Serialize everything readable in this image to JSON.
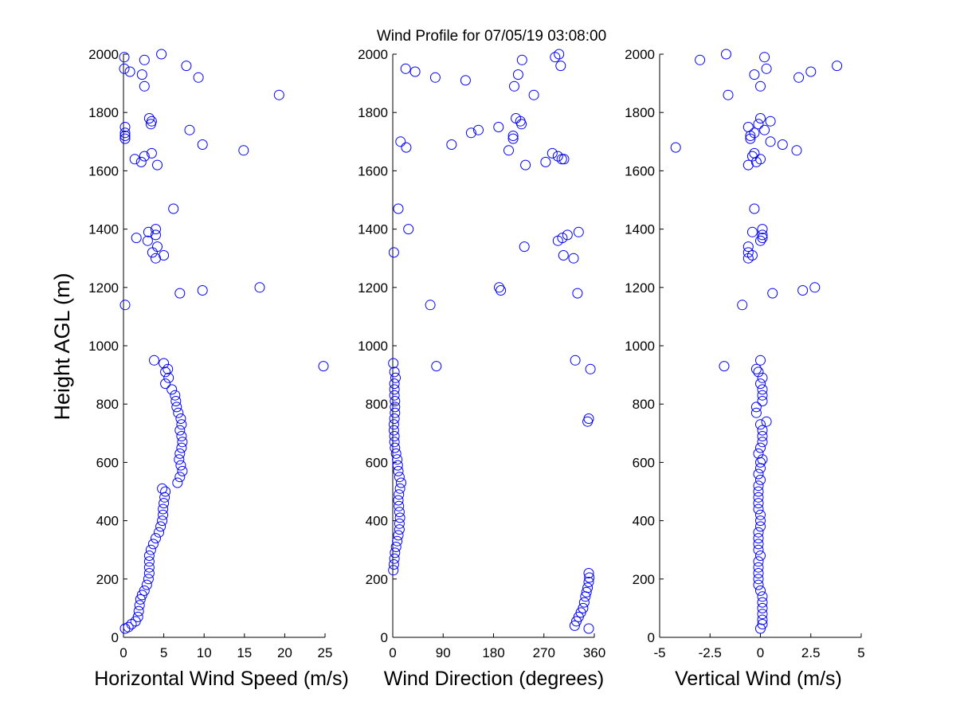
{
  "figure": {
    "title": "Wind Profile for  07/05/19 03:08:00",
    "ylabel": "Height AGL (m)"
  },
  "chart_data": [
    {
      "type": "scatter",
      "id": "speed",
      "xlabel": "Horizontal Wind Speed (m/s)",
      "ylabel": "Height AGL (m)",
      "xlim": [
        0,
        25
      ],
      "ylim": [
        0,
        2000
      ],
      "xticks": [
        "0",
        "5",
        "10",
        "15",
        "20",
        "25"
      ],
      "yticks": [
        "0",
        "200",
        "400",
        "600",
        "800",
        "1000",
        "1200",
        "1400",
        "1600",
        "1800",
        "2000"
      ],
      "marker": "circle",
      "color": "#0000ff",
      "points": [
        [
          0.2,
          30
        ],
        [
          0.6,
          35
        ],
        [
          1.0,
          45
        ],
        [
          1.5,
          55
        ],
        [
          1.8,
          70
        ],
        [
          1.9,
          90
        ],
        [
          2.0,
          110
        ],
        [
          2.1,
          130
        ],
        [
          2.3,
          145
        ],
        [
          2.6,
          160
        ],
        [
          2.9,
          180
        ],
        [
          3.1,
          200
        ],
        [
          3.2,
          220
        ],
        [
          3.2,
          240
        ],
        [
          3.2,
          260
        ],
        [
          3.2,
          280
        ],
        [
          3.4,
          300
        ],
        [
          3.7,
          320
        ],
        [
          4.0,
          340
        ],
        [
          4.4,
          360
        ],
        [
          4.6,
          380
        ],
        [
          4.8,
          400
        ],
        [
          4.9,
          420
        ],
        [
          4.9,
          440
        ],
        [
          5.0,
          460
        ],
        [
          5.1,
          480
        ],
        [
          5.2,
          500
        ],
        [
          4.8,
          510
        ],
        [
          6.7,
          530
        ],
        [
          7.0,
          550
        ],
        [
          7.3,
          570
        ],
        [
          7.1,
          590
        ],
        [
          6.9,
          610
        ],
        [
          7.0,
          630
        ],
        [
          7.2,
          650
        ],
        [
          7.3,
          670
        ],
        [
          7.2,
          690
        ],
        [
          7.0,
          710
        ],
        [
          7.2,
          730
        ],
        [
          7.1,
          750
        ],
        [
          6.8,
          770
        ],
        [
          6.6,
          790
        ],
        [
          6.5,
          810
        ],
        [
          6.4,
          830
        ],
        [
          6.0,
          850
        ],
        [
          5.2,
          870
        ],
        [
          5.6,
          890
        ],
        [
          5.2,
          910
        ],
        [
          5.5,
          920
        ],
        [
          5.0,
          940
        ],
        [
          3.8,
          950
        ],
        [
          24.8,
          930
        ],
        [
          0.2,
          1140
        ],
        [
          7.0,
          1180
        ],
        [
          9.8,
          1190
        ],
        [
          16.9,
          1200
        ],
        [
          5.0,
          1310
        ],
        [
          3.6,
          1320
        ],
        [
          4.0,
          1300
        ],
        [
          4.2,
          1340
        ],
        [
          3.0,
          1360
        ],
        [
          1.6,
          1370
        ],
        [
          3.1,
          1390
        ],
        [
          4.0,
          1400
        ],
        [
          4.0,
          1380
        ],
        [
          6.2,
          1470
        ],
        [
          4.2,
          1620
        ],
        [
          2.2,
          1630
        ],
        [
          2.6,
          1650
        ],
        [
          1.4,
          1640
        ],
        [
          3.5,
          1660
        ],
        [
          9.8,
          1690
        ],
        [
          14.9,
          1670
        ],
        [
          0.2,
          1710
        ],
        [
          0.2,
          1720
        ],
        [
          0.2,
          1730
        ],
        [
          0.2,
          1750
        ],
        [
          8.2,
          1740
        ],
        [
          3.4,
          1760
        ],
        [
          3.5,
          1770
        ],
        [
          3.2,
          1780
        ],
        [
          19.3,
          1860
        ],
        [
          2.6,
          1890
        ],
        [
          9.3,
          1920
        ],
        [
          2.3,
          1930
        ],
        [
          0.8,
          1940
        ],
        [
          0.1,
          1950
        ],
        [
          7.8,
          1960
        ],
        [
          2.6,
          1980
        ],
        [
          0.1,
          1990
        ],
        [
          4.7,
          2000
        ]
      ]
    },
    {
      "type": "scatter",
      "id": "direction",
      "xlabel": "Wind Direction (degrees)",
      "ylabel": "",
      "xlim": [
        0,
        360
      ],
      "ylim": [
        0,
        2000
      ],
      "xticks": [
        "0",
        "90",
        "180",
        "270",
        "360"
      ],
      "yticks": [
        "0",
        "200",
        "400",
        "600",
        "800",
        "1000",
        "1200",
        "1400",
        "1600",
        "1800",
        "2000"
      ],
      "marker": "circle",
      "color": "#0000ff",
      "points": [
        [
          350,
          30
        ],
        [
          325,
          40
        ],
        [
          328,
          55
        ],
        [
          332,
          70
        ],
        [
          336,
          85
        ],
        [
          340,
          100
        ],
        [
          342,
          120
        ],
        [
          344,
          140
        ],
        [
          346,
          155
        ],
        [
          348,
          170
        ],
        [
          350,
          190
        ],
        [
          351,
          205
        ],
        [
          350,
          220
        ],
        [
          1,
          230
        ],
        [
          2,
          250
        ],
        [
          3,
          270
        ],
        [
          4,
          290
        ],
        [
          6,
          310
        ],
        [
          8,
          330
        ],
        [
          10,
          350
        ],
        [
          12,
          370
        ],
        [
          12,
          390
        ],
        [
          13,
          410
        ],
        [
          12,
          430
        ],
        [
          11,
          450
        ],
        [
          10,
          470
        ],
        [
          11,
          490
        ],
        [
          13,
          510
        ],
        [
          15,
          530
        ],
        [
          12,
          550
        ],
        [
          10,
          570
        ],
        [
          9,
          590
        ],
        [
          8,
          610
        ],
        [
          6,
          630
        ],
        [
          4,
          650
        ],
        [
          3,
          670
        ],
        [
          3,
          690
        ],
        [
          2,
          710
        ],
        [
          2,
          730
        ],
        [
          3,
          750
        ],
        [
          4,
          770
        ],
        [
          4,
          790
        ],
        [
          4,
          810
        ],
        [
          3,
          830
        ],
        [
          3,
          850
        ],
        [
          3,
          870
        ],
        [
          5,
          890
        ],
        [
          3,
          910
        ],
        [
          1,
          940
        ],
        [
          350,
          750
        ],
        [
          348,
          740
        ],
        [
          326,
          950
        ],
        [
          353,
          920
        ],
        [
          78,
          930
        ],
        [
          67,
          1140
        ],
        [
          193,
          1190
        ],
        [
          190,
          1200
        ],
        [
          330,
          1180
        ],
        [
          2,
          1320
        ],
        [
          305,
          1310
        ],
        [
          323,
          1300
        ],
        [
          235,
          1340
        ],
        [
          295,
          1360
        ],
        [
          303,
          1370
        ],
        [
          312,
          1380
        ],
        [
          332,
          1390
        ],
        [
          10,
          1470
        ],
        [
          28,
          1400
        ],
        [
          237,
          1620
        ],
        [
          273,
          1630
        ],
        [
          302,
          1640
        ],
        [
          295,
          1650
        ],
        [
          306,
          1640
        ],
        [
          285,
          1660
        ],
        [
          24,
          1680
        ],
        [
          207,
          1670
        ],
        [
          105,
          1690
        ],
        [
          14,
          1700
        ],
        [
          153,
          1740
        ],
        [
          140,
          1730
        ],
        [
          215,
          1710
        ],
        [
          215,
          1720
        ],
        [
          189,
          1750
        ],
        [
          230,
          1760
        ],
        [
          220,
          1780
        ],
        [
          228,
          1770
        ],
        [
          252,
          1860
        ],
        [
          217,
          1890
        ],
        [
          76,
          1920
        ],
        [
          130,
          1910
        ],
        [
          224,
          1930
        ],
        [
          40,
          1940
        ],
        [
          23,
          1950
        ],
        [
          300,
          1960
        ],
        [
          231,
          1980
        ],
        [
          290,
          1990
        ],
        [
          297,
          2000
        ]
      ]
    },
    {
      "type": "scatter",
      "id": "vertical",
      "xlabel": "Vertical Wind (m/s)",
      "ylabel": "",
      "xlim": [
        -5,
        5
      ],
      "ylim": [
        0,
        2000
      ],
      "xticks": [
        "-5",
        "-2.5",
        "0",
        "2.5",
        "5"
      ],
      "yticks": [
        "0",
        "200",
        "400",
        "600",
        "800",
        "1000",
        "1200",
        "1400",
        "1600",
        "1800",
        "2000"
      ],
      "marker": "circle",
      "color": "#0000ff",
      "points": [
        [
          0.0,
          30
        ],
        [
          0.1,
          45
        ],
        [
          0.1,
          60
        ],
        [
          0.1,
          80
        ],
        [
          0.1,
          100
        ],
        [
          0.1,
          120
        ],
        [
          0.1,
          140
        ],
        [
          0.0,
          160
        ],
        [
          -0.1,
          180
        ],
        [
          -0.1,
          200
        ],
        [
          -0.1,
          220
        ],
        [
          -0.1,
          240
        ],
        [
          -0.1,
          260
        ],
        [
          0.0,
          280
        ],
        [
          -0.1,
          300
        ],
        [
          -0.1,
          320
        ],
        [
          -0.1,
          340
        ],
        [
          -0.1,
          360
        ],
        [
          0.0,
          380
        ],
        [
          0.0,
          400
        ],
        [
          0.0,
          420
        ],
        [
          -0.1,
          440
        ],
        [
          -0.1,
          460
        ],
        [
          -0.1,
          480
        ],
        [
          -0.1,
          500
        ],
        [
          -0.1,
          520
        ],
        [
          0.0,
          540
        ],
        [
          -0.1,
          560
        ],
        [
          0.0,
          580
        ],
        [
          0.0,
          600
        ],
        [
          0.1,
          610
        ],
        [
          -0.1,
          630
        ],
        [
          0.0,
          650
        ],
        [
          0.1,
          670
        ],
        [
          0.1,
          690
        ],
        [
          0.1,
          710
        ],
        [
          0.0,
          730
        ],
        [
          0.3,
          740
        ],
        [
          -0.2,
          770
        ],
        [
          -0.2,
          790
        ],
        [
          0.1,
          810
        ],
        [
          0.1,
          830
        ],
        [
          0.1,
          850
        ],
        [
          0.0,
          870
        ],
        [
          0.1,
          890
        ],
        [
          -0.1,
          910
        ],
        [
          -0.2,
          920
        ],
        [
          0.0,
          950
        ],
        [
          -1.8,
          930
        ],
        [
          -0.9,
          1140
        ],
        [
          0.6,
          1180
        ],
        [
          2.1,
          1190
        ],
        [
          2.7,
          1200
        ],
        [
          -0.6,
          1300
        ],
        [
          -0.6,
          1320
        ],
        [
          -0.4,
          1310
        ],
        [
          -0.6,
          1340
        ],
        [
          0.0,
          1360
        ],
        [
          0.1,
          1370
        ],
        [
          0.1,
          1380
        ],
        [
          0.1,
          1400
        ],
        [
          -0.4,
          1390
        ],
        [
          -0.3,
          1470
        ],
        [
          -0.6,
          1620
        ],
        [
          -0.2,
          1630
        ],
        [
          0.0,
          1640
        ],
        [
          -0.4,
          1650
        ],
        [
          -0.3,
          1660
        ],
        [
          -4.2,
          1680
        ],
        [
          1.1,
          1690
        ],
        [
          1.8,
          1670
        ],
        [
          -0.5,
          1710
        ],
        [
          -0.5,
          1720
        ],
        [
          -0.3,
          1730
        ],
        [
          0.5,
          1700
        ],
        [
          -0.6,
          1750
        ],
        [
          0.2,
          1740
        ],
        [
          0.5,
          1770
        ],
        [
          -0.1,
          1760
        ],
        [
          0.0,
          1780
        ],
        [
          -1.6,
          1860
        ],
        [
          0.0,
          1890
        ],
        [
          1.9,
          1920
        ],
        [
          -0.3,
          1930
        ],
        [
          2.5,
          1940
        ],
        [
          0.3,
          1950
        ],
        [
          3.8,
          1960
        ],
        [
          -3.0,
          1980
        ],
        [
          0.2,
          1990
        ],
        [
          -1.7,
          2000
        ]
      ]
    }
  ]
}
